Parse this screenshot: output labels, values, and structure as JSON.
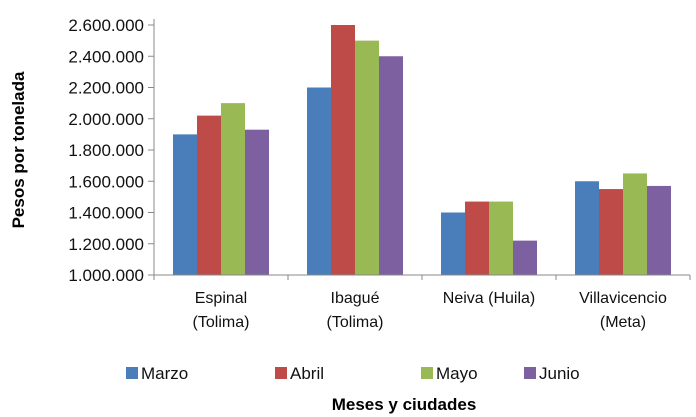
{
  "chart_data": {
    "type": "bar",
    "title": "",
    "xlabel": "Meses y ciudades",
    "ylabel": "Pesos por tonelada",
    "ylim": [
      1000000,
      2600000
    ],
    "yticks": [
      1000000,
      1200000,
      1400000,
      1600000,
      1800000,
      2000000,
      2200000,
      2400000,
      2600000
    ],
    "ytick_labels": [
      "1.000.000",
      "1.200.000",
      "1.400.000",
      "1.600.000",
      "1.800.000",
      "2.000.000",
      "2.200.000",
      "2.400.000",
      "2.600.000"
    ],
    "categories": [
      [
        "Espinal",
        "(Tolima)"
      ],
      [
        "Ibagué",
        "(Tolima)"
      ],
      [
        "Neiva (Huila)"
      ],
      [
        "Villavicencio",
        "(Meta)"
      ]
    ],
    "series": [
      {
        "name": "Marzo",
        "color": "#4a7ebb",
        "values": [
          1900000,
          2200000,
          1400000,
          1600000
        ]
      },
      {
        "name": "Abril",
        "color": "#be4b48",
        "values": [
          2020000,
          2600000,
          1470000,
          1550000
        ]
      },
      {
        "name": "Mayo",
        "color": "#98b954",
        "values": [
          2100000,
          2500000,
          1470000,
          1650000
        ]
      },
      {
        "name": "Junio",
        "color": "#7d60a0",
        "values": [
          1930000,
          2400000,
          1220000,
          1570000
        ]
      }
    ],
    "grid": false,
    "legend_position": "bottom"
  }
}
